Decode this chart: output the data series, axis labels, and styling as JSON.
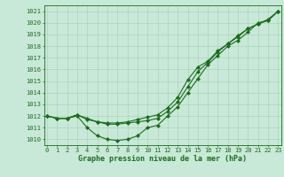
{
  "xlabel": "Graphe pression niveau de la mer (hPa)",
  "x": [
    0,
    1,
    2,
    3,
    4,
    5,
    6,
    7,
    8,
    9,
    10,
    11,
    12,
    13,
    14,
    15,
    16,
    17,
    18,
    19,
    20,
    21,
    22,
    23
  ],
  "line1": [
    1012.0,
    1011.8,
    1011.8,
    1012.0,
    1011.0,
    1010.3,
    1010.0,
    1009.9,
    1010.0,
    1010.3,
    1011.0,
    1011.2,
    1012.0,
    1012.8,
    1014.0,
    1015.2,
    1016.4,
    1017.2,
    1018.0,
    1018.5,
    1019.2,
    1020.0,
    1020.2,
    1021.0
  ],
  "line2": [
    1012.0,
    1011.8,
    1011.8,
    1012.1,
    1011.8,
    1011.5,
    1011.3,
    1011.3,
    1011.4,
    1011.5,
    1011.6,
    1011.8,
    1012.4,
    1013.2,
    1014.5,
    1015.8,
    1016.6,
    1017.5,
    1018.2,
    1018.8,
    1019.5,
    1019.9,
    1020.3,
    1021.0
  ],
  "line3": [
    1012.0,
    1011.8,
    1011.8,
    1012.1,
    1011.7,
    1011.5,
    1011.4,
    1011.4,
    1011.5,
    1011.7,
    1011.9,
    1012.1,
    1012.7,
    1013.6,
    1015.1,
    1016.2,
    1016.7,
    1017.6,
    1018.2,
    1018.9,
    1019.5,
    1019.9,
    1020.2,
    1021.0
  ],
  "line_color": "#1a6e1a",
  "bg_color": "#c8e8d8",
  "grid_color": "#a8ccb8",
  "ylim": [
    1009.5,
    1021.5
  ],
  "yticks": [
    1010,
    1011,
    1012,
    1013,
    1014,
    1015,
    1016,
    1017,
    1018,
    1019,
    1020,
    1021
  ],
  "xticks": [
    0,
    1,
    2,
    3,
    4,
    5,
    6,
    7,
    8,
    9,
    10,
    11,
    12,
    13,
    14,
    15,
    16,
    17,
    18,
    19,
    20,
    21,
    22,
    23
  ],
  "tick_fontsize": 5.0,
  "label_fontsize": 6.0,
  "marker": "D",
  "markersize": 2.0,
  "linewidth": 0.8
}
